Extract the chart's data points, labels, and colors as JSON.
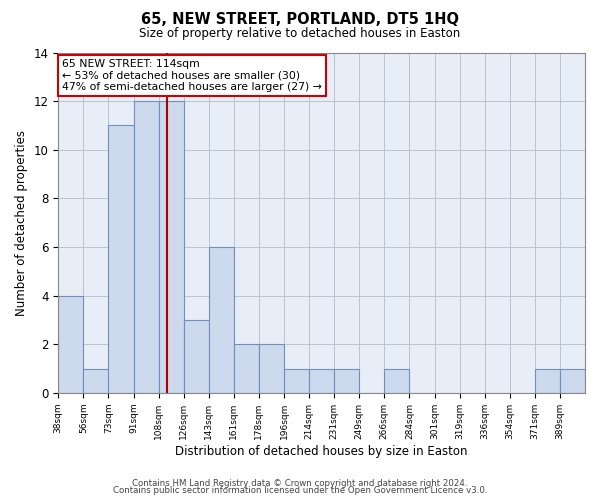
{
  "title": "65, NEW STREET, PORTLAND, DT5 1HQ",
  "subtitle": "Size of property relative to detached houses in Easton",
  "xlabel": "Distribution of detached houses by size in Easton",
  "ylabel": "Number of detached properties",
  "bin_labels": [
    "38sqm",
    "56sqm",
    "73sqm",
    "91sqm",
    "108sqm",
    "126sqm",
    "143sqm",
    "161sqm",
    "178sqm",
    "196sqm",
    "214sqm",
    "231sqm",
    "249sqm",
    "266sqm",
    "284sqm",
    "301sqm",
    "319sqm",
    "336sqm",
    "354sqm",
    "371sqm",
    "389sqm"
  ],
  "counts": [
    4,
    1,
    11,
    12,
    12,
    3,
    6,
    2,
    2,
    1,
    1,
    1,
    0,
    1,
    0,
    0,
    0,
    0,
    0,
    1,
    1
  ],
  "bar_color": "#cdd9ed",
  "bar_edge_color": "#7090bb",
  "grid_color": "#b0bece",
  "vline_bin": 4,
  "vline_color": "#aa0000",
  "annotation_text": "65 NEW STREET: 114sqm\n← 53% of detached houses are smaller (30)\n47% of semi-detached houses are larger (27) →",
  "annotation_box_color": "#ffffff",
  "annotation_box_edge": "#cc0000",
  "ylim": [
    0,
    14
  ],
  "yticks": [
    0,
    2,
    4,
    6,
    8,
    10,
    12,
    14
  ],
  "footer1": "Contains HM Land Registry data © Crown copyright and database right 2024.",
  "footer2": "Contains public sector information licensed under the Open Government Licence v3.0.",
  "bg_color": "#ffffff",
  "plot_bg_color": "#e8eef8"
}
